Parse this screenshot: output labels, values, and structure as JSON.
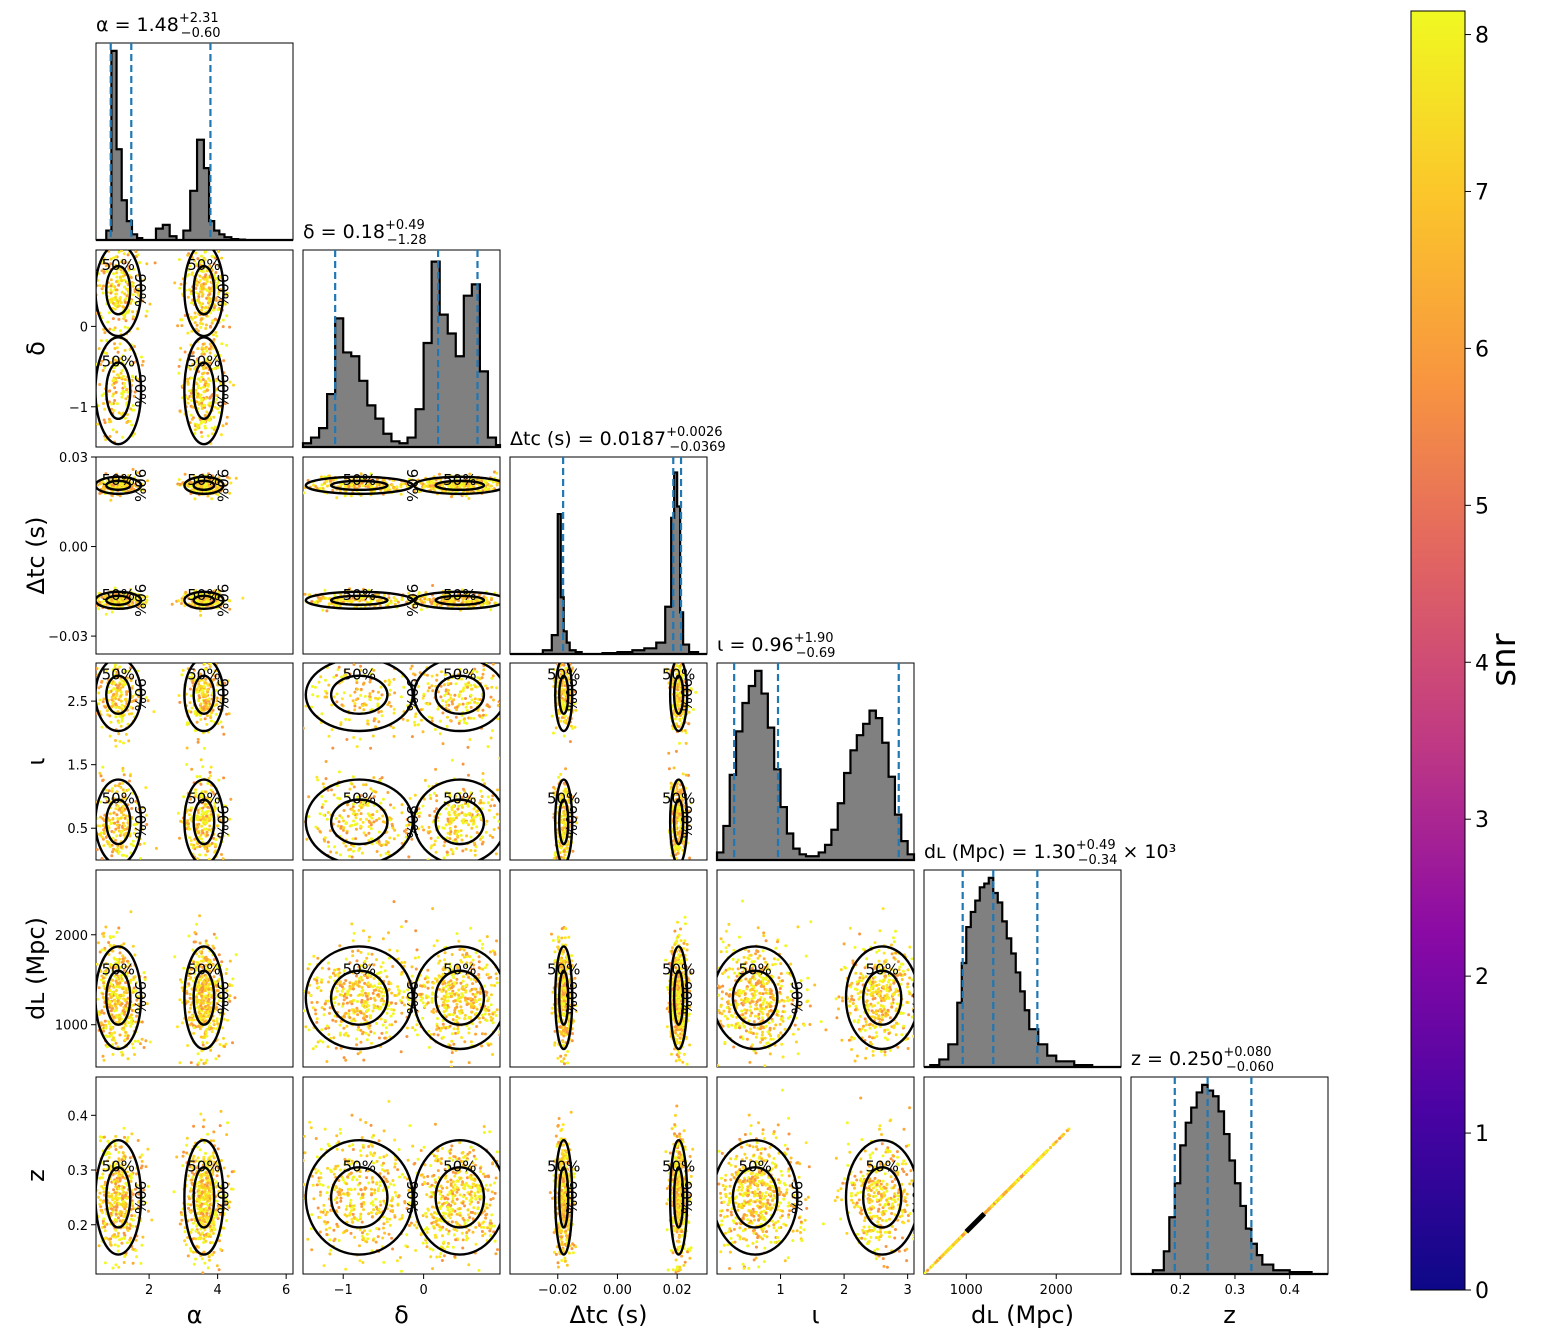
{
  "chart_data": {
    "type": "scatter",
    "description_kind": "corner-plot",
    "parameters": [
      {
        "key": "alpha",
        "axis_label": "α",
        "title_main": "α = 1.48",
        "title_sup": "+2.31",
        "title_sub": "−0.60",
        "title_suffix": "",
        "range": [
          0.45,
          6.2
        ],
        "ticks": [
          2,
          4,
          6
        ],
        "quantiles": [
          0.88,
          1.48,
          3.79
        ]
      },
      {
        "key": "delta",
        "axis_label": "δ",
        "title_main": "δ = 0.18",
        "title_sup": "+0.49",
        "title_sub": "−1.28",
        "title_suffix": "",
        "range": [
          -1.5,
          0.95
        ],
        "ticks": [
          -1,
          0
        ],
        "quantiles": [
          -1.1,
          0.18,
          0.67
        ]
      },
      {
        "key": "dtc",
        "axis_label": "Δtᴄ (s)",
        "title_main": "Δtᴄ (s) = 0.0187",
        "title_sup": "+0.0026",
        "title_sub": "−0.0369",
        "title_suffix": "",
        "range": [
          -0.036,
          0.03
        ],
        "ticks": [
          -0.02,
          0.0,
          0.02
        ],
        "quantiles": [
          -0.0182,
          0.0187,
          0.0213
        ]
      },
      {
        "key": "iota",
        "axis_label": "ι",
        "title_main": "ι = 0.96",
        "title_sup": "+1.90",
        "title_sub": "−0.69",
        "title_suffix": "",
        "range": [
          0.0,
          3.1
        ],
        "ticks": [
          1,
          2,
          3
        ],
        "quantiles": [
          0.27,
          0.96,
          2.86
        ]
      },
      {
        "key": "dl",
        "axis_label": "dʟ (Mpc)",
        "title_main": "dʟ (Mpc) = 1.30",
        "title_sup": "+0.49",
        "title_sub": "−0.34",
        "title_suffix": "× 10³",
        "range": [
          530,
          2720
        ],
        "ticks": [
          1000,
          2000
        ],
        "quantiles": [
          960,
          1300,
          1790
        ]
      },
      {
        "key": "z",
        "axis_label": "z",
        "title_main": "z = 0.250",
        "title_sup": "+0.080",
        "title_sub": "−0.060",
        "title_suffix": "",
        "range": [
          0.11,
          0.47
        ],
        "ticks": [
          0.2,
          0.3,
          0.4
        ],
        "quantiles": [
          0.19,
          0.25,
          0.33
        ]
      }
    ],
    "y_tick_labels": {
      "delta": [
        "−1",
        "0"
      ],
      "dtc": [
        "−0.03",
        "0.00",
        "0.03"
      ],
      "iota": [
        "0.5",
        "1.5",
        "2.5"
      ],
      "dl": [
        "1000",
        "2000"
      ],
      "z": [
        "0.2",
        "0.3",
        "0.4"
      ]
    },
    "y_tick_values": {
      "delta": [
        -1,
        0
      ],
      "dtc": [
        -0.03,
        0.0,
        0.03
      ],
      "iota": [
        0.5,
        1.5,
        2.5
      ],
      "dl": [
        1000,
        2000
      ],
      "z": [
        0.2,
        0.3,
        0.4
      ]
    },
    "x_tick_labels": {
      "alpha": [
        "2",
        "4",
        "6"
      ],
      "delta": [
        "−1",
        "0"
      ],
      "dtc": [
        "−0.02",
        "0.00",
        "0.02"
      ],
      "iota": [
        "1",
        "2",
        "3"
      ],
      "dl": [
        "1000",
        "2000"
      ],
      "z": [
        "0.2",
        "0.3",
        "0.4"
      ]
    },
    "histograms": {
      "alpha": {
        "bins_x": [
          0.45,
          0.6,
          0.75,
          0.9,
          1.05,
          1.2,
          1.35,
          1.5,
          1.65,
          1.8,
          2.0,
          2.2,
          2.4,
          2.6,
          2.8,
          3.0,
          3.2,
          3.4,
          3.6,
          3.75,
          3.9,
          4.05,
          4.2,
          4.4,
          4.6,
          4.8,
          5.0,
          5.4,
          6.2
        ],
        "values": [
          0,
          0,
          0.05,
          1.0,
          0.48,
          0.21,
          0.1,
          0.03,
          0.01,
          0.0,
          0.0,
          0.06,
          0.08,
          0.02,
          0.0,
          0.05,
          0.26,
          0.53,
          0.38,
          0.1,
          0.05,
          0.03,
          0.015,
          0.005,
          0.002,
          0,
          0,
          0
        ]
      },
      "delta": {
        "bins_x": [
          -1.5,
          -1.4,
          -1.3,
          -1.2,
          -1.1,
          -1.0,
          -0.9,
          -0.8,
          -0.7,
          -0.6,
          -0.5,
          -0.4,
          -0.3,
          -0.2,
          -0.1,
          0.0,
          0.1,
          0.2,
          0.3,
          0.4,
          0.5,
          0.6,
          0.7,
          0.8,
          0.9,
          0.95
        ],
        "values": [
          0.02,
          0.05,
          0.1,
          0.28,
          0.68,
          0.5,
          0.48,
          0.35,
          0.22,
          0.15,
          0.07,
          0.03,
          0.02,
          0.05,
          0.2,
          0.55,
          0.98,
          0.7,
          0.6,
          0.48,
          0.8,
          0.86,
          0.4,
          0.05,
          0.01
        ]
      },
      "dtc": {
        "bins_x": [
          -0.036,
          -0.03,
          -0.025,
          -0.022,
          -0.02,
          -0.019,
          -0.018,
          -0.017,
          -0.016,
          -0.014,
          -0.012,
          -0.009,
          -0.005,
          0.0,
          0.005,
          0.009,
          0.013,
          0.016,
          0.018,
          0.019,
          0.02,
          0.021,
          0.022,
          0.024,
          0.027,
          0.03
        ],
        "values": [
          0,
          0,
          0.02,
          0.1,
          0.74,
          0.3,
          0.12,
          0.06,
          0.02,
          0.01,
          0,
          0,
          0.005,
          0.01,
          0.02,
          0.03,
          0.06,
          0.25,
          0.72,
          0.96,
          0.78,
          0.22,
          0.05,
          0.01,
          0
        ]
      },
      "iota": {
        "bins_x": [
          0.0,
          0.1,
          0.2,
          0.3,
          0.4,
          0.5,
          0.6,
          0.7,
          0.8,
          0.9,
          1.0,
          1.1,
          1.2,
          1.3,
          1.4,
          1.5,
          1.6,
          1.7,
          1.8,
          1.9,
          2.0,
          2.1,
          2.2,
          2.3,
          2.4,
          2.5,
          2.6,
          2.7,
          2.8,
          2.9,
          3.0,
          3.1
        ],
        "values": [
          0.04,
          0.18,
          0.45,
          0.68,
          0.83,
          0.92,
          1.0,
          0.88,
          0.7,
          0.48,
          0.28,
          0.14,
          0.06,
          0.03,
          0.02,
          0.02,
          0.04,
          0.08,
          0.16,
          0.3,
          0.46,
          0.58,
          0.66,
          0.72,
          0.79,
          0.75,
          0.62,
          0.44,
          0.24,
          0.1,
          0.03
        ]
      },
      "dl": {
        "bins_x": [
          530,
          600,
          700,
          800,
          900,
          950,
          1000,
          1050,
          1100,
          1150,
          1200,
          1250,
          1300,
          1350,
          1400,
          1450,
          1500,
          1550,
          1600,
          1650,
          1700,
          1800,
          1900,
          2000,
          2200,
          2400,
          2720
        ],
        "values": [
          0,
          0.01,
          0.04,
          0.12,
          0.34,
          0.55,
          0.74,
          0.82,
          0.88,
          0.95,
          0.97,
          1.0,
          0.92,
          0.87,
          0.77,
          0.68,
          0.6,
          0.5,
          0.4,
          0.3,
          0.2,
          0.12,
          0.06,
          0.03,
          0.01,
          0
        ]
      },
      "z": {
        "bins_x": [
          0.11,
          0.15,
          0.17,
          0.18,
          0.19,
          0.2,
          0.21,
          0.22,
          0.23,
          0.24,
          0.25,
          0.26,
          0.27,
          0.28,
          0.29,
          0.3,
          0.31,
          0.32,
          0.33,
          0.34,
          0.35,
          0.37,
          0.4,
          0.44,
          0.47
        ],
        "values": [
          0,
          0.02,
          0.12,
          0.3,
          0.48,
          0.68,
          0.8,
          0.88,
          0.96,
          1.0,
          0.97,
          0.94,
          0.86,
          0.74,
          0.6,
          0.48,
          0.36,
          0.24,
          0.16,
          0.1,
          0.05,
          0.02,
          0.01,
          0
        ]
      }
    },
    "colorbar": {
      "label": "snr",
      "range": [
        0,
        8.15
      ],
      "ticks": [
        0,
        1,
        2,
        3,
        4,
        5,
        6,
        7,
        8
      ],
      "tick_labels": [
        "0",
        "1",
        "2",
        "3",
        "4",
        "5",
        "6",
        "7",
        "8"
      ],
      "colormap": "plasma",
      "stops": [
        "#0d0887",
        "#5c01a6",
        "#9c179e",
        "#cc4778",
        "#ed7953",
        "#fdb42f",
        "#f0f921"
      ]
    },
    "contour_levels": [
      "50%",
      "90%"
    ],
    "quantile_line_color": "#1f77b4",
    "histogram_fill": "#808080"
  }
}
